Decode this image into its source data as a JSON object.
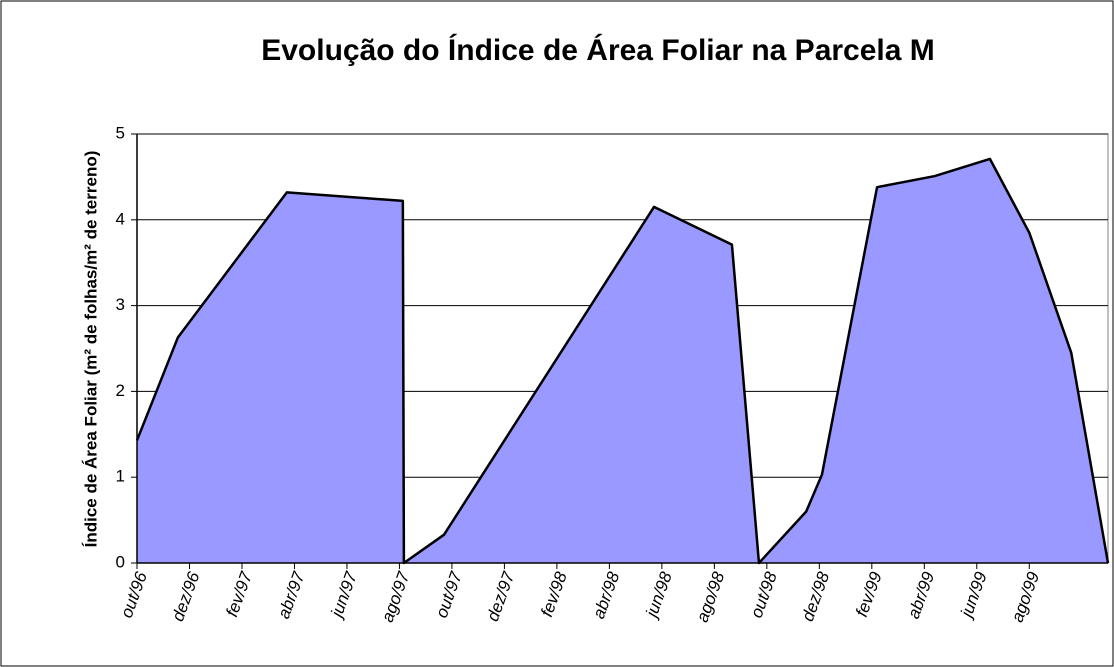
{
  "chart_data": {
    "type": "area",
    "title": "Evolução do Índice de Área Foliar na Parcela M",
    "y_label": "Índice de Área Foliar (m² de folhas/m² de terreno)",
    "x": [
      0,
      1.56,
      5.71,
      10.13,
      10.17,
      11.7,
      19.7,
      22.67,
      23.7,
      25.5,
      26.1,
      28.2,
      30.4,
      32.5,
      34.0,
      35.6,
      37
    ],
    "values": [
      1.43,
      2.63,
      4.32,
      4.22,
      0,
      0.33,
      4.15,
      3.71,
      0,
      0.6,
      1.03,
      4.38,
      4.51,
      4.71,
      3.85,
      2.45,
      0
    ],
    "color": "#9999ff",
    "xlim": [
      0,
      37
    ],
    "xticks": [
      {
        "value": 0,
        "label": "out/96"
      },
      {
        "value": 2,
        "label": "dez/96"
      },
      {
        "value": 4,
        "label": "fev/97"
      },
      {
        "value": 6,
        "label": "abr/97"
      },
      {
        "value": 8,
        "label": "jun/97"
      },
      {
        "value": 10,
        "label": "ago/97"
      },
      {
        "value": 12,
        "label": "out/97"
      },
      {
        "value": 14,
        "label": "dez/97"
      },
      {
        "value": 16,
        "label": "fev/98"
      },
      {
        "value": 18,
        "label": "abr/98"
      },
      {
        "value": 20,
        "label": "jun/98"
      },
      {
        "value": 22,
        "label": "ago/98"
      },
      {
        "value": 24,
        "label": "out/98"
      },
      {
        "value": 26,
        "label": "dez/98"
      },
      {
        "value": 28,
        "label": "fev/99"
      },
      {
        "value": 30,
        "label": "abr/99"
      },
      {
        "value": 32,
        "label": "jun/99"
      },
      {
        "value": 34,
        "label": "ago/99"
      }
    ],
    "ylim": [
      0,
      5
    ],
    "yticks": [
      0,
      1,
      2,
      3,
      4,
      5
    ],
    "grid": true
  }
}
